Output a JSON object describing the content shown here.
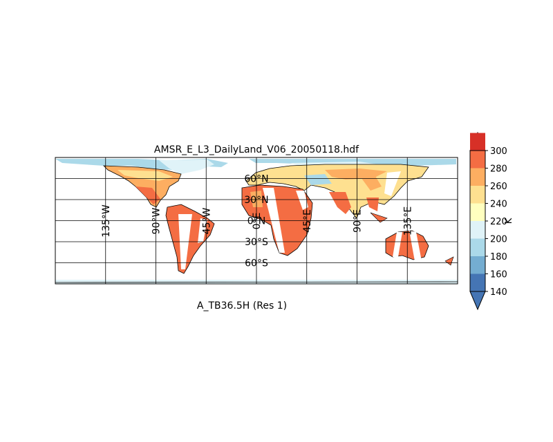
{
  "title": "AMSR_E_L3_DailyLand_V06_20050118.hdf",
  "xlabel": "A_TB36.5H (Res 1)",
  "colorbar": {
    "unit": "K",
    "ticks": [
      "140",
      "160",
      "180",
      "200",
      "220",
      "240",
      "260",
      "280",
      "300"
    ],
    "colors": [
      "#4575b4",
      "#74add1",
      "#abd9e9",
      "#e0f3f8",
      "#ffffbf",
      "#fee090",
      "#fdae61",
      "#f46d43",
      "#d73027"
    ],
    "under_color": "#4575b4",
    "over_color": "#d73027"
  },
  "map": {
    "projection": "cylindrical",
    "lon_range": [
      -180,
      180
    ],
    "lat_range": [
      -90,
      90
    ],
    "meridians": [
      {
        "lon": -135,
        "label": "135°W"
      },
      {
        "lon": -90,
        "label": "90°W"
      },
      {
        "lon": -45,
        "label": "45°W"
      },
      {
        "lon": 0,
        "label": "0°E"
      },
      {
        "lon": 45,
        "label": "45°E"
      },
      {
        "lon": 90,
        "label": "90°E"
      },
      {
        "lon": 135,
        "label": "135°E"
      }
    ],
    "parallels": [
      {
        "lat": 60,
        "label": "60°N"
      },
      {
        "lat": 30,
        "label": "30°N"
      },
      {
        "lat": 0,
        "label": "0°N"
      },
      {
        "lat": -30,
        "label": "30°S"
      },
      {
        "lat": -60,
        "label": "60°S"
      }
    ]
  }
}
